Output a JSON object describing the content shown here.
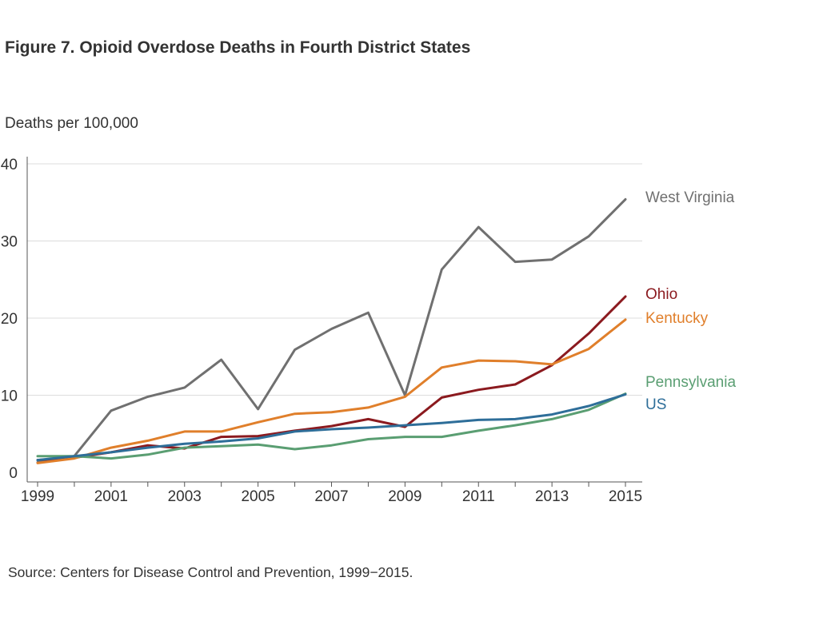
{
  "header": {
    "title": "Figure 7. Opioid Overdose Deaths in Fourth District States"
  },
  "footer": {
    "source": "Source: Centers for Disease Control and Prevention, 1999−2015."
  },
  "chart_data": {
    "type": "line",
    "title": "Figure 7. Opioid Overdose Deaths in Fourth District States",
    "xlabel": "",
    "ylabel": "Deaths per 100,000",
    "x": [
      1999,
      2000,
      2001,
      2002,
      2003,
      2004,
      2005,
      2006,
      2007,
      2008,
      2009,
      2010,
      2011,
      2012,
      2013,
      2014,
      2015
    ],
    "xticks": [
      "1999",
      "2001",
      "2003",
      "2005",
      "2007",
      "2009",
      "2011",
      "2013",
      "2015"
    ],
    "yticks": [
      "0",
      "10",
      "20",
      "30",
      "40"
    ],
    "xlim": [
      1999,
      2015
    ],
    "ylim": [
      0,
      40
    ],
    "grid": "horizontal",
    "legend": "direct labels at right end of lines",
    "series": [
      {
        "name": "West Virginia",
        "color": "#707070",
        "values": [
          1.3,
          2.1,
          8.0,
          9.8,
          11.0,
          14.6,
          8.2,
          15.9,
          18.6,
          20.7,
          10.0,
          26.3,
          31.8,
          27.3,
          27.6,
          30.6,
          35.4
        ]
      },
      {
        "name": "Ohio",
        "color": "#8b1a1f",
        "values": [
          1.6,
          1.9,
          2.6,
          3.5,
          3.1,
          4.6,
          4.7,
          5.4,
          6.0,
          6.9,
          5.9,
          9.7,
          10.7,
          11.4,
          13.9,
          18.0,
          22.8
        ]
      },
      {
        "name": "Kentucky",
        "color": "#e07f2b",
        "values": [
          1.2,
          1.8,
          3.2,
          4.1,
          5.3,
          5.3,
          6.5,
          7.6,
          7.8,
          8.4,
          9.8,
          13.6,
          14.5,
          14.4,
          14.0,
          16.0,
          19.8
        ]
      },
      {
        "name": "Pennsylvania",
        "color": "#5a9e72",
        "values": [
          2.1,
          2.1,
          1.8,
          2.3,
          3.2,
          3.4,
          3.6,
          3.0,
          3.5,
          4.3,
          4.6,
          4.6,
          5.4,
          6.1,
          6.9,
          8.1,
          10.2
        ]
      },
      {
        "name": "US",
        "color": "#2e6e99",
        "values": [
          1.6,
          2.1,
          2.6,
          3.2,
          3.7,
          4.0,
          4.4,
          5.3,
          5.6,
          5.8,
          6.1,
          6.4,
          6.8,
          6.9,
          7.5,
          8.6,
          10.1
        ]
      }
    ]
  }
}
